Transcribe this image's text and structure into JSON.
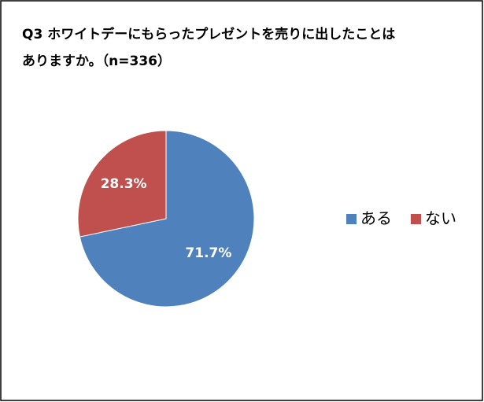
{
  "chart_data": {
    "type": "pie",
    "title_lines": [
      "Q3 ホワイトデーにもらったプレゼントを売りに出したことは",
      "ありますか。（n=336）"
    ],
    "categories": [
      "ある",
      "ない"
    ],
    "values": [
      71.7,
      28.3
    ],
    "value_labels": [
      "71.7%",
      "28.3%"
    ],
    "colors": [
      "#4f81bd",
      "#c0504d"
    ],
    "legend": "right"
  }
}
